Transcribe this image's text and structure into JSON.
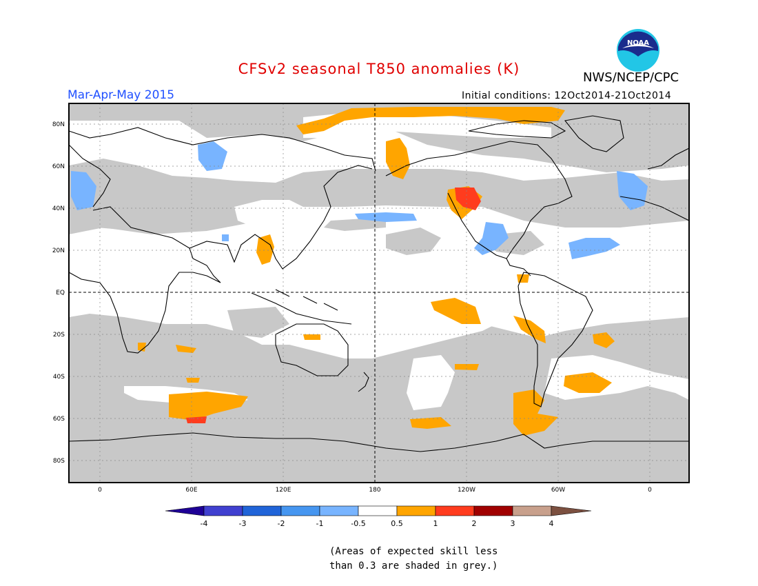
{
  "header": {
    "title": "CFSv2 seasonal T850 anomalies (K)",
    "organization": "NWS/NCEP/CPC",
    "logo_text": "NOAA",
    "season": "Mar-Apr-May 2015",
    "initial_conditions": "Initial conditions: 12Oct2014-21Oct2014"
  },
  "map": {
    "lat_labels": [
      "80N",
      "60N",
      "40N",
      "20N",
      "EQ",
      "20S",
      "40S",
      "60S",
      "80S"
    ],
    "lon_labels": [
      "0",
      "60E",
      "120E",
      "180",
      "120W",
      "60W",
      "0"
    ],
    "colors": {
      "skill_grey": "#c8c8c8",
      "ocean_land_no_skill": "#ffffff",
      "orange": "#ffa500",
      "red_orange": "#ff3c1e",
      "light_blue": "#78b4ff"
    }
  },
  "colorbar": {
    "labels": [
      "-4",
      "-3",
      "-2",
      "-1",
      "-0.5",
      "0.5",
      "1",
      "2",
      "3",
      "4"
    ],
    "colors": [
      "#1e0096",
      "#4040d0",
      "#2064d8",
      "#4696f0",
      "#78b4ff",
      "#ffffff",
      "#ffa500",
      "#ff3c1e",
      "#a00000",
      "#c8a08c",
      "#7c5040"
    ]
  },
  "footnote": {
    "line1": "(Areas of expected skill less",
    "line2": "than 0.3 are shaded in grey.)"
  }
}
